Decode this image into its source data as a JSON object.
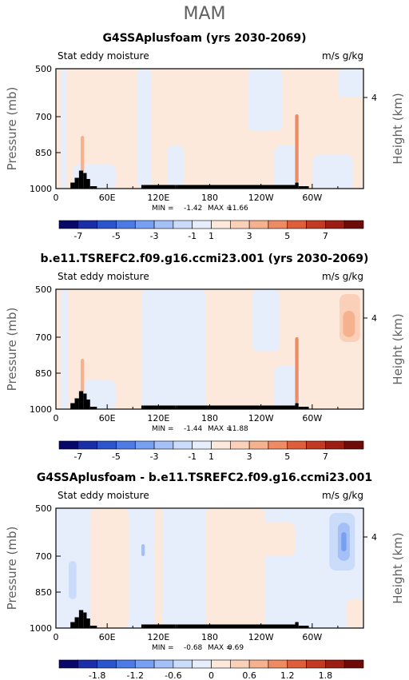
{
  "figure": {
    "season": "MAM",
    "colors": {
      "land": "#000000",
      "frame": "#000000",
      "grey_text": "#606060"
    }
  },
  "chart_data": [
    {
      "type": "heatmap",
      "title": "G4SSAplusfoam (yrs 2030-2069)",
      "left_label": "Stat eddy moisture",
      "right_label": "m/s g/kg",
      "ylabel": "Pressure (mb)",
      "ylabel_right": "Height (km)",
      "x_ticks": [
        "0",
        "60E",
        "120E",
        "180",
        "120W",
        "60W"
      ],
      "x_tick_values": [
        0,
        60,
        120,
        180,
        240,
        300
      ],
      "xlim": [
        0,
        360
      ],
      "y_ticks": [
        "500",
        "700",
        "850",
        "1000"
      ],
      "y_tick_values": [
        500,
        700,
        850,
        1000
      ],
      "ylim": [
        1000,
        500
      ],
      "y_right_ticks": [
        "4"
      ],
      "y_right_tick_values": [
        620
      ],
      "stats": {
        "min_label": "MIN =",
        "min": "-1.42",
        "max_label": "MAX =",
        "max": "11.66"
      },
      "colorbar_labels": [
        "-7",
        "-5",
        "-3",
        "-1",
        "1",
        "3",
        "5",
        "7"
      ],
      "colorbar_colors": [
        "#08086b",
        "#1a2ea8",
        "#2a55cc",
        "#4c7be6",
        "#779ff2",
        "#a4c0f7",
        "#cbdcfb",
        "#e6eefc",
        "#fde9dc",
        "#fad1b8",
        "#f6b18e",
        "#ee8b63",
        "#de5e3c",
        "#c23a24",
        "#9c1d13",
        "#6e0a08"
      ],
      "land_cols": [
        [
          12,
          1000
        ],
        [
          17,
          975
        ],
        [
          22,
          955
        ],
        [
          27,
          925
        ],
        [
          32,
          935
        ],
        [
          36,
          960
        ],
        [
          40,
          990
        ],
        [
          48,
          1000
        ],
        [
          100,
          985
        ],
        [
          102,
          985
        ],
        [
          140,
          985
        ],
        [
          142,
          985
        ],
        [
          280,
          975
        ],
        [
          284,
          990
        ],
        [
          290,
          990
        ],
        [
          296,
          1000
        ],
        [
          300,
          1000
        ]
      ],
      "fields": [
        {
          "color": "#fde9dc",
          "band": "all"
        },
        {
          "color": "#e6eefc",
          "x0": 6,
          "x1": 12,
          "p0": 500,
          "p1": 1000
        },
        {
          "color": "#e6eefc",
          "x0": 20,
          "x1": 70,
          "p0": 900,
          "p1": 1000
        },
        {
          "color": "#e6eefc",
          "x0": 95,
          "x1": 112,
          "p0": 500,
          "p1": 1000
        },
        {
          "color": "#e6eefc",
          "x0": 130,
          "x1": 150,
          "p0": 820,
          "p1": 1000
        },
        {
          "color": "#e6eefc",
          "x0": 225,
          "x1": 265,
          "p0": 500,
          "p1": 760
        },
        {
          "color": "#e6eefc",
          "x0": 255,
          "x1": 285,
          "p0": 820,
          "p1": 1000
        },
        {
          "color": "#e6eefc",
          "x0": 300,
          "x1": 348,
          "p0": 860,
          "p1": 1000
        },
        {
          "color": "#e6eefc",
          "x0": 330,
          "x1": 360,
          "p0": 500,
          "p1": 620
        },
        {
          "color": "#f6b18e",
          "x0": 29,
          "x1": 33,
          "p0": 780,
          "p1": 930
        },
        {
          "color": "#ee8b63",
          "x0": 280,
          "x1": 284,
          "p0": 690,
          "p1": 975
        }
      ]
    },
    {
      "type": "heatmap",
      "title": "b.e11.TSREFC2.f09.g16.ccmi23.001 (yrs 2030-2069)",
      "left_label": "Stat eddy moisture",
      "right_label": "m/s g/kg",
      "ylabel": "Pressure (mb)",
      "ylabel_right": "Height (km)",
      "x_ticks": [
        "0",
        "60E",
        "120E",
        "180",
        "120W",
        "60W"
      ],
      "x_tick_values": [
        0,
        60,
        120,
        180,
        240,
        300
      ],
      "xlim": [
        0,
        360
      ],
      "y_ticks": [
        "500",
        "700",
        "850",
        "1000"
      ],
      "y_tick_values": [
        500,
        700,
        850,
        1000
      ],
      "ylim": [
        1000,
        500
      ],
      "y_right_ticks": [
        "4"
      ],
      "y_right_tick_values": [
        620
      ],
      "stats": {
        "min_label": "MIN =",
        "min": "-1.44",
        "max_label": "MAX =",
        "max": "11.88"
      },
      "colorbar_labels": [
        "-7",
        "-5",
        "-3",
        "-1",
        "1",
        "3",
        "5",
        "7"
      ],
      "colorbar_colors": [
        "#08086b",
        "#1a2ea8",
        "#2a55cc",
        "#4c7be6",
        "#779ff2",
        "#a4c0f7",
        "#cbdcfb",
        "#e6eefc",
        "#fde9dc",
        "#fad1b8",
        "#f6b18e",
        "#ee8b63",
        "#de5e3c",
        "#c23a24",
        "#9c1d13",
        "#6e0a08"
      ],
      "land_cols": [
        [
          12,
          1000
        ],
        [
          17,
          975
        ],
        [
          22,
          955
        ],
        [
          27,
          925
        ],
        [
          32,
          935
        ],
        [
          36,
          960
        ],
        [
          40,
          990
        ],
        [
          48,
          1000
        ],
        [
          100,
          985
        ],
        [
          102,
          985
        ],
        [
          140,
          985
        ],
        [
          142,
          985
        ],
        [
          280,
          975
        ],
        [
          284,
          990
        ],
        [
          290,
          990
        ],
        [
          296,
          1000
        ],
        [
          300,
          1000
        ]
      ],
      "fields": [
        {
          "color": "#fde9dc",
          "band": "all"
        },
        {
          "color": "#e6eefc",
          "x0": 6,
          "x1": 14,
          "p0": 500,
          "p1": 1000
        },
        {
          "color": "#e6eefc",
          "x0": 30,
          "x1": 70,
          "p0": 880,
          "p1": 1000
        },
        {
          "color": "#e6eefc",
          "x0": 100,
          "x1": 175,
          "p0": 500,
          "p1": 1000
        },
        {
          "color": "#e6eefc",
          "x0": 230,
          "x1": 262,
          "p0": 500,
          "p1": 760
        },
        {
          "color": "#e6eefc",
          "x0": 255,
          "x1": 285,
          "p0": 820,
          "p1": 1000
        },
        {
          "color": "#fad1b8",
          "x0": 332,
          "x1": 356,
          "p0": 520,
          "p1": 720
        },
        {
          "color": "#f6b18e",
          "x0": 336,
          "x1": 350,
          "p0": 590,
          "p1": 700
        },
        {
          "color": "#f6b18e",
          "x0": 29,
          "x1": 33,
          "p0": 790,
          "p1": 930
        },
        {
          "color": "#ee8b63",
          "x0": 280,
          "x1": 284,
          "p0": 700,
          "p1": 975
        }
      ]
    },
    {
      "type": "heatmap",
      "title": "G4SSAplusfoam - b.e11.TSREFC2.f09.g16.ccmi23.001",
      "left_label": "Stat eddy moisture",
      "right_label": "m/s g/kg",
      "ylabel": "Pressure (mb)",
      "ylabel_right": "Height (km)",
      "x_ticks": [
        "0",
        "60E",
        "120E",
        "180",
        "120W",
        "60W"
      ],
      "x_tick_values": [
        0,
        60,
        120,
        180,
        240,
        300
      ],
      "xlim": [
        0,
        360
      ],
      "y_ticks": [
        "500",
        "700",
        "850",
        "1000"
      ],
      "y_tick_values": [
        500,
        700,
        850,
        1000
      ],
      "ylim": [
        1000,
        500
      ],
      "y_right_ticks": [
        "4"
      ],
      "y_right_tick_values": [
        620
      ],
      "stats": {
        "min_label": "MIN =",
        "min": "-0.68",
        "max_label": "MAX =",
        "max": "0.69"
      },
      "colorbar_labels": [
        "-1.8",
        "-1.2",
        "-0.6",
        "0",
        "0.6",
        "1.2",
        "1.8"
      ],
      "colorbar_colors": [
        "#08086b",
        "#1a2ea8",
        "#2a55cc",
        "#4c7be6",
        "#779ff2",
        "#a4c0f7",
        "#cbdcfb",
        "#e6eefc",
        "#fde9dc",
        "#fad1b8",
        "#f6b18e",
        "#ee8b63",
        "#de5e3c",
        "#c23a24",
        "#9c1d13",
        "#6e0a08"
      ],
      "land_cols": [
        [
          12,
          1000
        ],
        [
          17,
          975
        ],
        [
          22,
          955
        ],
        [
          27,
          925
        ],
        [
          32,
          935
        ],
        [
          36,
          960
        ],
        [
          40,
          990
        ],
        [
          48,
          1000
        ],
        [
          100,
          985
        ],
        [
          102,
          985
        ],
        [
          140,
          985
        ],
        [
          142,
          985
        ],
        [
          280,
          975
        ],
        [
          284,
          990
        ],
        [
          290,
          990
        ],
        [
          296,
          1000
        ],
        [
          300,
          1000
        ]
      ],
      "fields": [
        {
          "color": "#e6eefc",
          "band": "all"
        },
        {
          "color": "#fde9dc",
          "x0": 40,
          "x1": 85,
          "p0": 500,
          "p1": 1000
        },
        {
          "color": "#fde9dc",
          "x0": 115,
          "x1": 125,
          "p0": 500,
          "p1": 1000
        },
        {
          "color": "#fde9dc",
          "x0": 175,
          "x1": 245,
          "p0": 500,
          "p1": 1000
        },
        {
          "color": "#fde9dc",
          "x0": 240,
          "x1": 280,
          "p0": 560,
          "p1": 700
        },
        {
          "color": "#fde9dc",
          "x0": 340,
          "x1": 360,
          "p0": 880,
          "p1": 1000
        },
        {
          "color": "#cbdcfb",
          "x0": 320,
          "x1": 350,
          "p0": 520,
          "p1": 760
        },
        {
          "color": "#a4c0f7",
          "x0": 330,
          "x1": 344,
          "p0": 560,
          "p1": 720
        },
        {
          "color": "#779ff2",
          "x0": 334,
          "x1": 340,
          "p0": 600,
          "p1": 680
        },
        {
          "color": "#a4c0f7",
          "x0": 100,
          "x1": 104,
          "p0": 650,
          "p1": 700
        },
        {
          "color": "#cbdcfb",
          "x0": 15,
          "x1": 24,
          "p0": 720,
          "p1": 880
        }
      ]
    }
  ]
}
